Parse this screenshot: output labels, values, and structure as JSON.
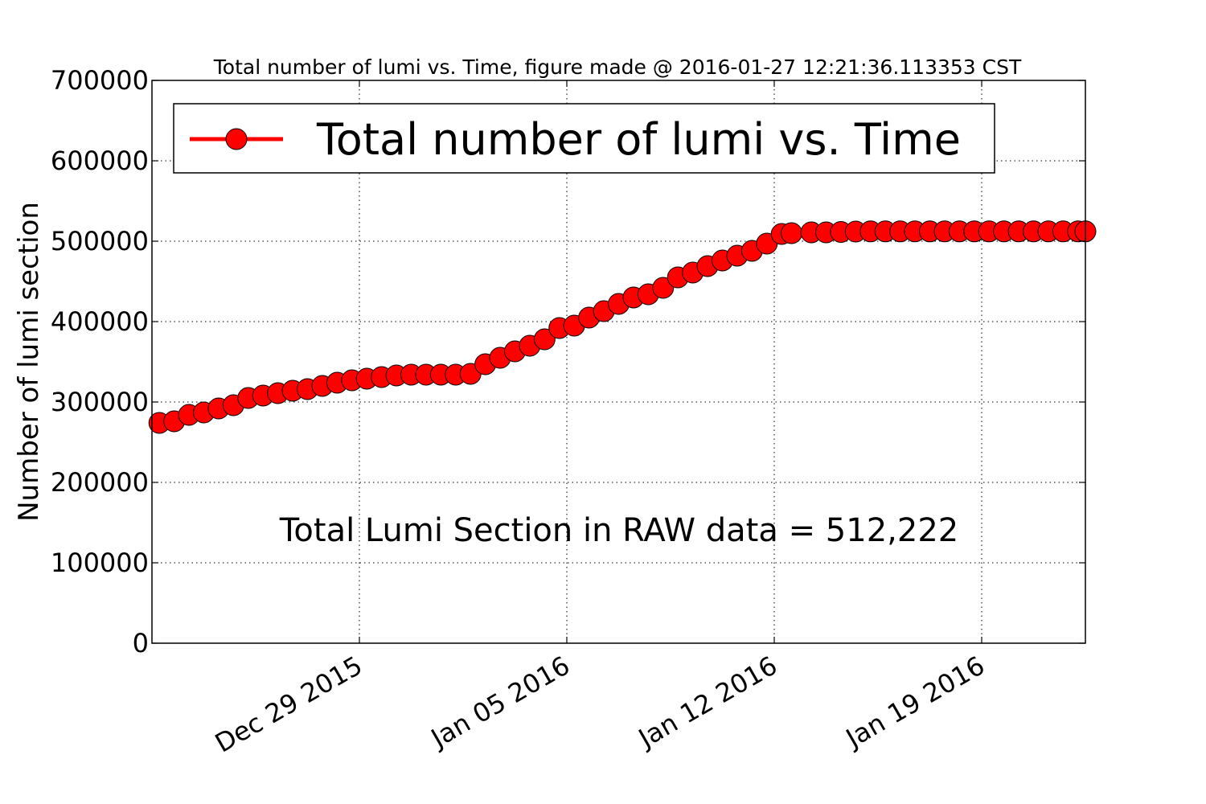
{
  "chart_data": {
    "type": "line",
    "title": "Total number of lumi vs. Time, figure made @ 2016-01-27 12:21:36.113353 CST",
    "xlabel": "",
    "ylabel": "Number of lumi section",
    "annotation": "Total Lumi Section in RAW data = 512,222",
    "xlim": [
      "2015-12-22T00:00",
      "2016-01-22T12:00"
    ],
    "ylim": [
      0,
      700000
    ],
    "y_ticks": [
      0,
      100000,
      200000,
      300000,
      400000,
      500000,
      600000,
      700000
    ],
    "x_ticks": [
      {
        "date": "2015-12-29",
        "label": "Dec 29 2015"
      },
      {
        "date": "2016-01-05",
        "label": "Jan 05 2016"
      },
      {
        "date": "2016-01-12",
        "label": "Jan 12 2016"
      },
      {
        "date": "2016-01-19",
        "label": "Jan 19 2016"
      }
    ],
    "grid": true,
    "legend_position": "top",
    "series": [
      {
        "name": "Total number of lumi vs. Time",
        "color": "#ff0000",
        "marker": "circle",
        "x": [
          "2015-12-22T06:00",
          "2015-12-22T18:00",
          "2015-12-23T06:00",
          "2015-12-23T18:00",
          "2015-12-24T06:00",
          "2015-12-24T18:00",
          "2015-12-25T06:00",
          "2015-12-25T18:00",
          "2015-12-26T06:00",
          "2015-12-26T18:00",
          "2015-12-27T06:00",
          "2015-12-27T18:00",
          "2015-12-28T06:00",
          "2015-12-28T18:00",
          "2015-12-29T06:00",
          "2015-12-29T18:00",
          "2015-12-30T06:00",
          "2015-12-30T18:00",
          "2015-12-31T06:00",
          "2015-12-31T18:00",
          "2016-01-01T06:00",
          "2016-01-01T18:00",
          "2016-01-02T06:00",
          "2016-01-02T18:00",
          "2016-01-03T06:00",
          "2016-01-03T18:00",
          "2016-01-04T06:00",
          "2016-01-04T18:00",
          "2016-01-05T06:00",
          "2016-01-05T18:00",
          "2016-01-06T06:00",
          "2016-01-06T18:00",
          "2016-01-07T06:00",
          "2016-01-07T18:00",
          "2016-01-08T06:00",
          "2016-01-08T18:00",
          "2016-01-09T06:00",
          "2016-01-09T18:00",
          "2016-01-10T06:00",
          "2016-01-10T18:00",
          "2016-01-11T06:00",
          "2016-01-11T18:00",
          "2016-01-12T06:00",
          "2016-01-12T14:00",
          "2016-01-13T06:00",
          "2016-01-13T18:00",
          "2016-01-14T06:00",
          "2016-01-14T18:00",
          "2016-01-15T06:00",
          "2016-01-15T18:00",
          "2016-01-16T06:00",
          "2016-01-16T18:00",
          "2016-01-17T06:00",
          "2016-01-17T18:00",
          "2016-01-18T06:00",
          "2016-01-18T18:00",
          "2016-01-19T06:00",
          "2016-01-19T18:00",
          "2016-01-20T06:00",
          "2016-01-20T18:00",
          "2016-01-21T06:00",
          "2016-01-21T18:00",
          "2016-01-22T06:00",
          "2016-01-22T12:00"
        ],
        "y": [
          274000,
          276000,
          284000,
          287000,
          292000,
          296000,
          305000,
          308000,
          311000,
          314000,
          316000,
          320000,
          324000,
          327000,
          329000,
          331000,
          333000,
          334000,
          334000,
          334000,
          334000,
          335000,
          347000,
          355000,
          363000,
          370000,
          378000,
          392000,
          395000,
          405000,
          413000,
          422000,
          430000,
          434000,
          442000,
          455000,
          461000,
          469000,
          476000,
          482000,
          488000,
          497000,
          509000,
          510000,
          511000,
          511000,
          511500,
          512000,
          512222,
          512222,
          512222,
          512222,
          512222,
          512222,
          512222,
          512222,
          512222,
          512222,
          512222,
          512222,
          512222,
          512222,
          512222,
          512222
        ]
      }
    ]
  }
}
